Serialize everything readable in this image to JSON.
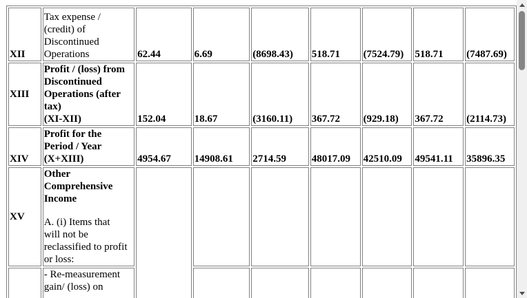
{
  "rows": {
    "xii": {
      "roman": "XII",
      "lines": [
        "Tax expense /",
        "(credit) of",
        "Discontinued",
        "Operations"
      ],
      "values": [
        "62.44",
        "6.69",
        "(8698.43)",
        "518.71",
        "(7524.79)",
        "518.71",
        "(7487.69)"
      ]
    },
    "xiii": {
      "roman": "XIII",
      "lines": [
        "Profit / (loss) from",
        "Discontinued",
        "Operations (after",
        "tax)",
        "(XI-XII)"
      ],
      "values": [
        "152.04",
        "18.67",
        "(3160.11)",
        "367.72",
        "(929.18)",
        "367.72",
        "(2114.73)"
      ]
    },
    "xiv": {
      "roman": "XIV",
      "lines": [
        "Profit for the",
        "Period / Year",
        "(X+XIII)"
      ],
      "values": [
        "4954.67",
        "14908.61",
        "2714.59",
        "48017.09",
        "42510.09",
        "49541.11",
        "35896.35"
      ]
    },
    "xv": {
      "roman": "XV",
      "heading_lines": [
        "Other",
        "Comprehensive",
        "Income"
      ],
      "sub_lines": [
        "A. (i) Items that",
        "will not be",
        "reclassified to profit",
        "or loss:"
      ]
    },
    "partial": {
      "lines": [
        "- Re-measurement",
        "gain/ (loss) on"
      ]
    }
  }
}
